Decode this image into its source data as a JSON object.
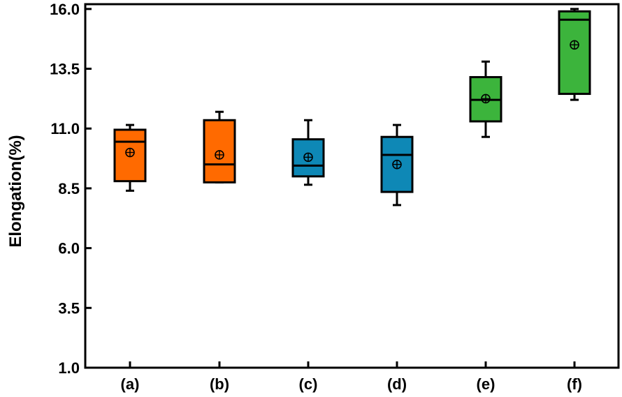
{
  "chart_data": {
    "type": "box",
    "title": "",
    "xlabel": "",
    "ylabel": "Elongation(%)",
    "ylim": [
      1.0,
      16.2
    ],
    "yticks": [
      "1.0",
      "3.5",
      "6.0",
      "8.5",
      "11.0",
      "13.5",
      "16.0"
    ],
    "categories": [
      "(a)",
      "(b)",
      "(c)",
      "(d)",
      "(e)",
      "(f)"
    ],
    "boxes": [
      {
        "whisker_low": 8.4,
        "q1": 8.8,
        "median": 10.45,
        "q3": 10.95,
        "whisker_high": 11.15,
        "mean": 10.0,
        "color": "#ff6a00"
      },
      {
        "whisker_low": 8.75,
        "q1": 8.75,
        "median": 9.5,
        "q3": 11.35,
        "whisker_high": 11.7,
        "mean": 9.9,
        "color": "#ff6a00"
      },
      {
        "whisker_low": 8.65,
        "q1": 9.0,
        "median": 9.45,
        "q3": 10.55,
        "whisker_high": 11.35,
        "mean": 9.8,
        "color": "#0e88b6"
      },
      {
        "whisker_low": 7.8,
        "q1": 8.35,
        "median": 9.9,
        "q3": 10.65,
        "whisker_high": 11.15,
        "mean": 9.5,
        "color": "#0e88b6"
      },
      {
        "whisker_low": 10.65,
        "q1": 11.3,
        "median": 12.2,
        "q3": 13.15,
        "whisker_high": 13.8,
        "mean": 12.25,
        "color": "#3cb43c"
      },
      {
        "whisker_low": 12.2,
        "q1": 12.45,
        "median": 15.55,
        "q3": 15.9,
        "whisker_high": 16.0,
        "mean": 14.5,
        "color": "#3cb43c"
      }
    ]
  }
}
